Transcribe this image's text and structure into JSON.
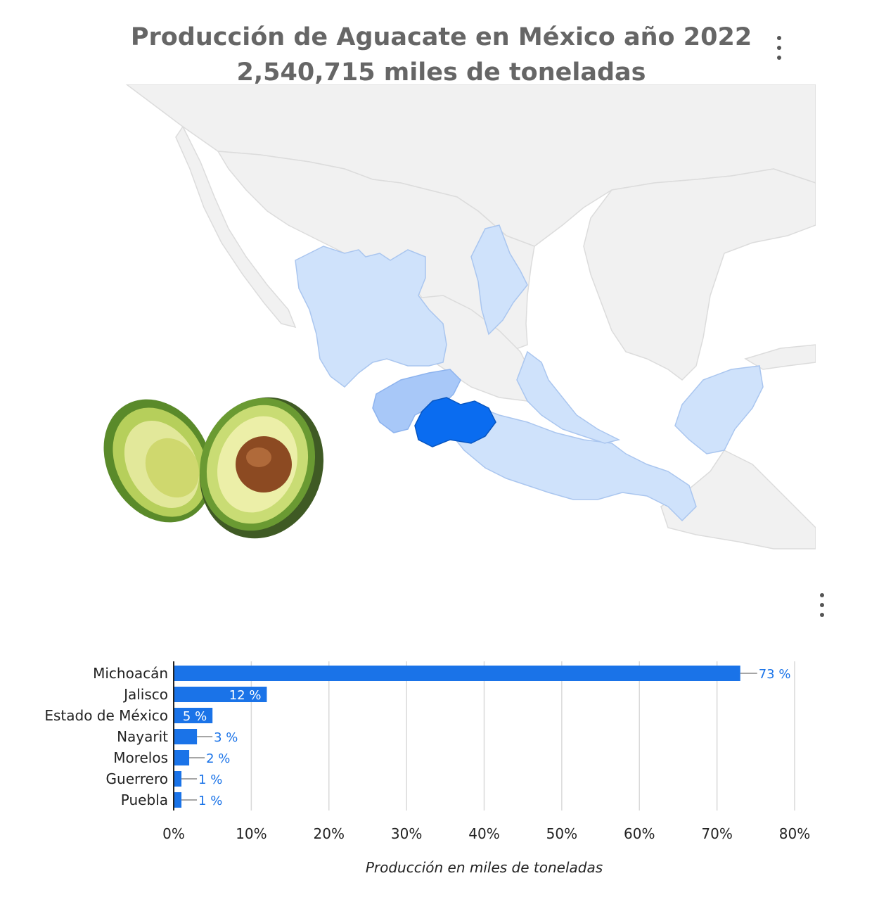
{
  "title": {
    "line1": "Producción de Aguacate en México año 2022",
    "line2": "2,540,715 miles de toneladas"
  },
  "icons": {
    "map_menu": "more-vertical-icon",
    "chart_menu": "more-vertical-icon"
  },
  "colors": {
    "title": "#666666",
    "bar": "#1a73e8",
    "label_outside": "#1a73e8",
    "label_inside": "#ffffff",
    "map_top": "#0a6cf0",
    "map_mid": "#a8c8f8",
    "map_low": "#cfe2fb",
    "map_none": "#f1f1f1",
    "grid": "#d9d9d9"
  },
  "chart_data": {
    "type": "bar",
    "orientation": "horizontal",
    "categories": [
      "Michoacán",
      "Jalisco",
      "Estado de México",
      "Nayarit",
      "Morelos",
      "Guerrero",
      "Puebla"
    ],
    "values": [
      73,
      12,
      5,
      3,
      2,
      1,
      1
    ],
    "data_labels": [
      "73 %",
      "12 %",
      "5 %",
      "3 %",
      "2 %",
      "1 %",
      "1 %"
    ],
    "xlim": [
      0,
      80
    ],
    "x_ticks": [
      0,
      10,
      20,
      30,
      40,
      50,
      60,
      70,
      80
    ],
    "x_tick_labels": [
      "0%",
      "10%",
      "20%",
      "30%",
      "40%",
      "50%",
      "60%",
      "70%",
      "80%"
    ],
    "xlabel": "Producción en miles de toneladas",
    "grid": true,
    "legend": "none"
  }
}
